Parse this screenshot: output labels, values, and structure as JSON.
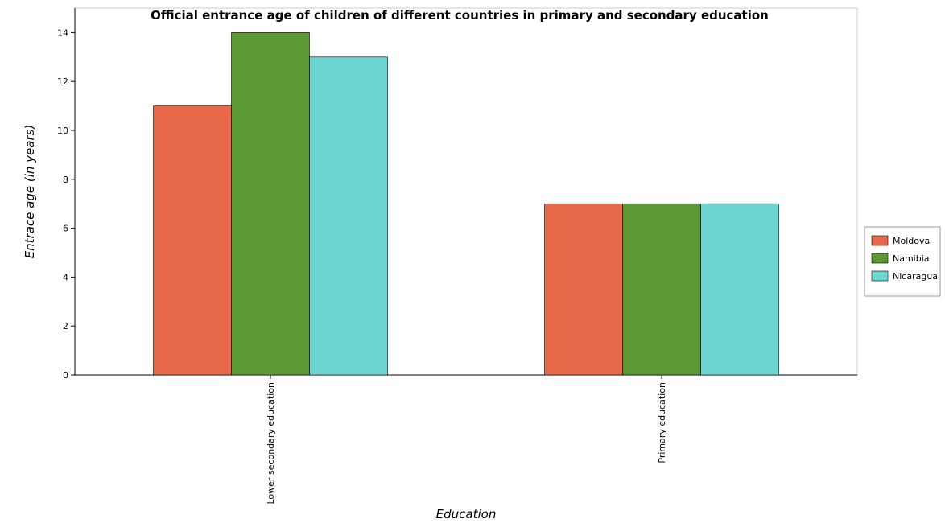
{
  "chart_data": {
    "type": "bar",
    "title": "Official entrance age of children of different countries in primary and secondary education",
    "xlabel": "Education",
    "ylabel": "Entrace age (in  years)",
    "categories": [
      "Lower secondary education",
      "Primary education"
    ],
    "series": [
      {
        "name": "Moldova",
        "color": "#e8694a",
        "values": [
          11,
          7
        ]
      },
      {
        "name": "Namibia",
        "color": "#5b9a33",
        "values": [
          14,
          7
        ]
      },
      {
        "name": "Nicaragua",
        "color": "#6dd5d2",
        "values": [
          13,
          7
        ]
      }
    ],
    "ylim": [
      0,
      15
    ],
    "yticks": [
      0,
      2,
      4,
      6,
      8,
      10,
      12,
      14
    ],
    "grid": false,
    "legend_position": "right"
  }
}
